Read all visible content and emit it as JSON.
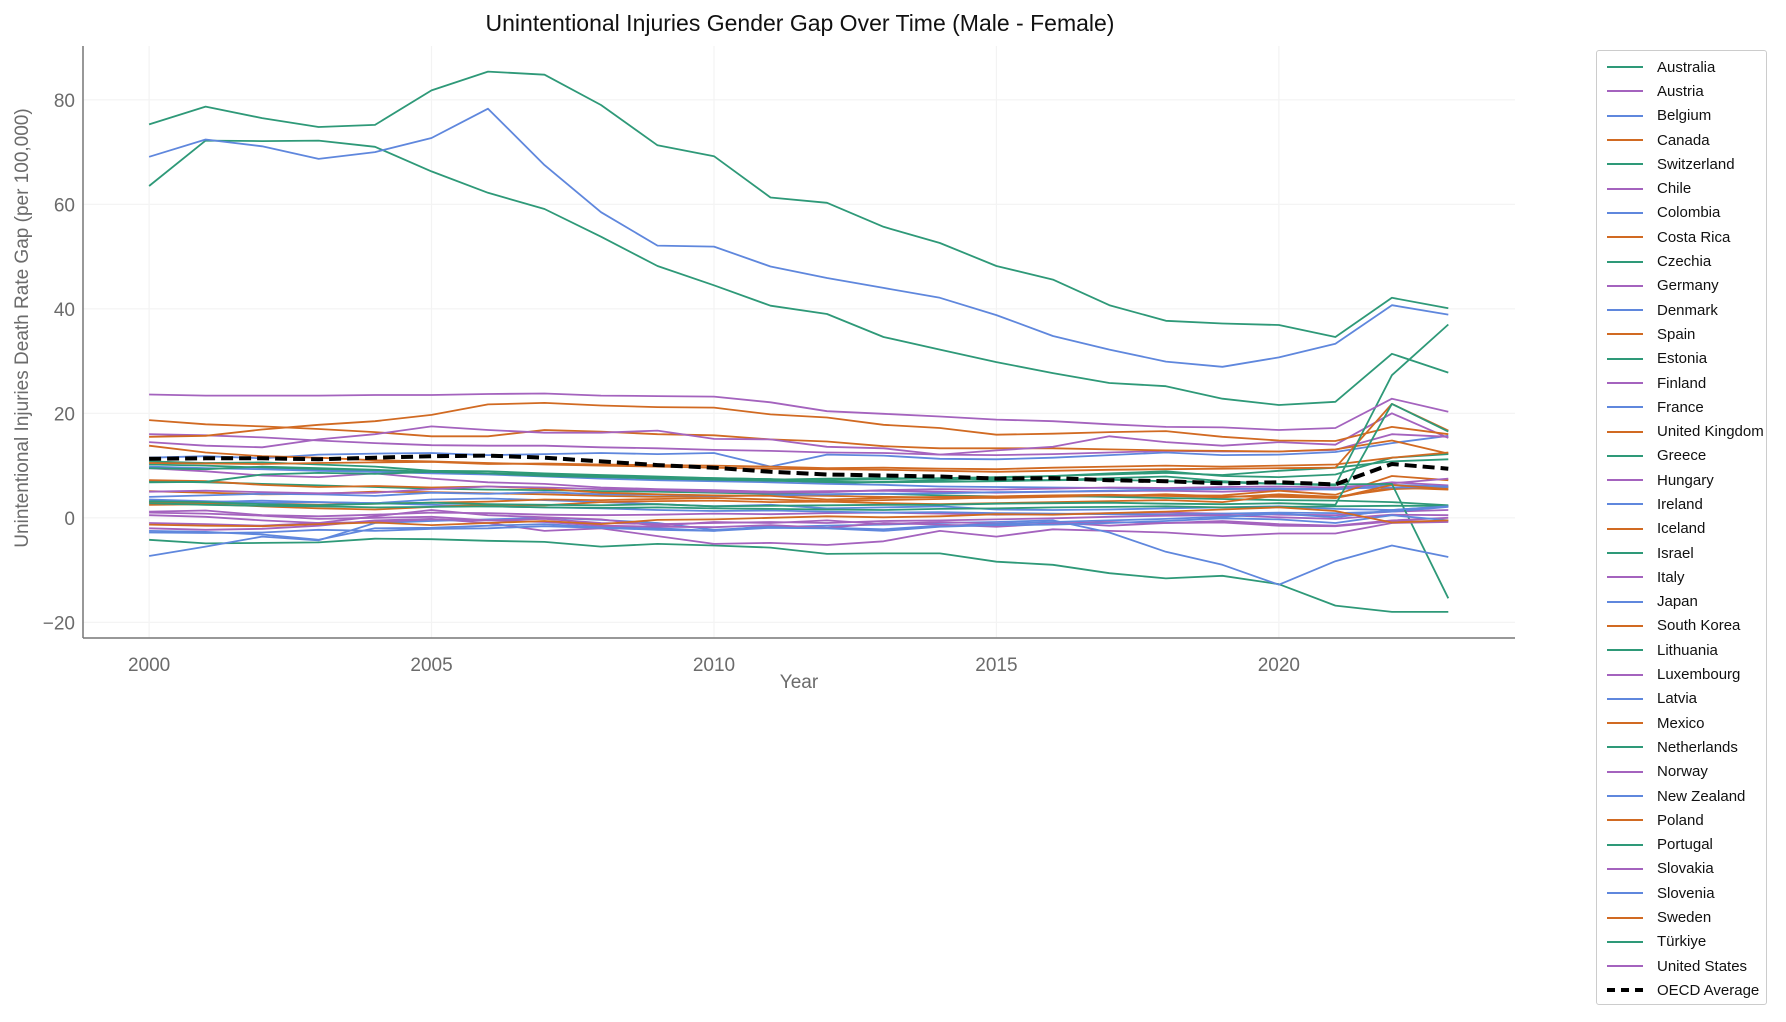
{
  "chart_data": {
    "type": "line",
    "title": "Unintentional Injuries Gender Gap Over Time (Male - Female)",
    "xlabel": "Year",
    "ylabel": "Unintentional Injuries Death Rate Gap (per 100,000)",
    "xlim": [
      1998.83,
      2024.18
    ],
    "ylim": [
      -23,
      90.3
    ],
    "xticks": [
      2000,
      2005,
      2010,
      2015,
      2020
    ],
    "yticks": [
      -20,
      0,
      20,
      40,
      60,
      80
    ],
    "ytick_labels": [
      "−20",
      "0",
      "20",
      "40",
      "60",
      "80"
    ],
    "grid": true,
    "legend_position": "outside-right",
    "colors": {
      "green": "#2e9978",
      "purple": "#a463be",
      "blue": "#5f87dd",
      "orange": "#d16a22",
      "average": "#000000"
    },
    "x": [
      2000,
      2001,
      2002,
      2003,
      2004,
      2005,
      2006,
      2007,
      2008,
      2009,
      2010,
      2011,
      2012,
      2013,
      2014,
      2015,
      2016,
      2017,
      2018,
      2019,
      2020,
      2021,
      2022,
      2023
    ],
    "series": [
      {
        "name": "Australia",
        "color": "green",
        "values": [
          10.2,
          10.0,
          9.6,
          9.2,
          8.9,
          8.6,
          8.5,
          8.3,
          8.0,
          7.8,
          7.6,
          7.4,
          7.2,
          7.4,
          7.6,
          7.8,
          8.0,
          8.3,
          8.6,
          8.2,
          9.0,
          9.6,
          10.8,
          11.2
        ]
      },
      {
        "name": "Austria",
        "color": "purple",
        "values": [
          9.5,
          8.9,
          8.1,
          7.8,
          8.5,
          7.5,
          6.8,
          6.5,
          5.8,
          5.5,
          5.3,
          5.0,
          5.1,
          5.2,
          5.0,
          4.8,
          5.0,
          5.1,
          5.2,
          5.0,
          5.3,
          5.5,
          6.8,
          6.2
        ]
      },
      {
        "name": "Belgium",
        "color": "blue",
        "values": [
          11.5,
          11.8,
          11.4,
          12.1,
          12.3,
          12.4,
          12.0,
          12.2,
          12.4,
          12.2,
          12.4,
          9.8,
          12.1,
          11.9,
          11.3,
          11.2,
          11.5,
          12.0,
          12.5,
          12.0,
          12.1,
          12.6,
          14.3,
          15.7
        ]
      },
      {
        "name": "Canada",
        "color": "orange",
        "values": [
          5.1,
          4.8,
          4.5,
          4.6,
          5.0,
          4.9,
          4.7,
          4.5,
          4.2,
          4.0,
          4.1,
          4.3,
          4.2,
          4.0,
          3.9,
          3.8,
          4.0,
          4.2,
          4.5,
          4.1,
          4.0,
          3.8,
          5.8,
          5.4
        ]
      },
      {
        "name": "Switzerland",
        "color": "green",
        "values": [
          7.0,
          6.8,
          6.5,
          6.2,
          5.9,
          5.6,
          5.4,
          5.3,
          5.1,
          5.0,
          4.8,
          4.6,
          4.5,
          4.6,
          4.3,
          4.1,
          4.2,
          4.0,
          3.8,
          3.6,
          3.4,
          3.3,
          3.0,
          2.4
        ]
      },
      {
        "name": "Chile",
        "color": "purple",
        "values": [
          16.0,
          15.8,
          15.4,
          14.8,
          14.3,
          13.9,
          13.8,
          13.8,
          13.5,
          13.3,
          13.0,
          12.8,
          12.5,
          12.4,
          12.1,
          12.0,
          12.2,
          12.5,
          12.8,
          12.7,
          12.7,
          13.0,
          16.0,
          15.5
        ]
      },
      {
        "name": "Colombia",
        "color": "blue",
        "values": [
          4.0,
          4.3,
          4.6,
          4.5,
          4.2,
          4.8,
          4.6,
          4.9,
          4.5,
          4.4,
          4.2,
          4.3,
          4.5,
          4.6,
          4.7,
          4.9,
          5.0,
          5.2,
          5.4,
          5.5,
          5.6,
          5.4,
          6.3,
          6.0
        ]
      },
      {
        "name": "Costa Rica",
        "color": "orange",
        "values": [
          18.7,
          17.9,
          17.5,
          17.0,
          16.4,
          15.6,
          15.6,
          16.8,
          16.5,
          16.0,
          15.8,
          15.0,
          14.6,
          13.7,
          13.3,
          13.3,
          13.3,
          13.1,
          12.9,
          12.8,
          12.7,
          13.1,
          14.8,
          12.3
        ]
      },
      {
        "name": "Czechia",
        "color": "green",
        "values": [
          10.8,
          10.5,
          10.6,
          10.2,
          9.8,
          9.0,
          8.9,
          8.5,
          8.2,
          7.9,
          7.6,
          7.4,
          6.6,
          6.9,
          7.2,
          7.6,
          8.0,
          8.5,
          8.9,
          8.0,
          7.8,
          8.3,
          11.5,
          12.2
        ]
      },
      {
        "name": "Germany",
        "color": "purple",
        "values": [
          1.2,
          1.4,
          0.5,
          0.3,
          0.6,
          1.0,
          0.9,
          0.6,
          0.5,
          0.6,
          0.8,
          0.7,
          0.9,
          1.0,
          0.8,
          0.6,
          0.7,
          0.9,
          1.0,
          0.8,
          0.6,
          0.5,
          1.2,
          1.5
        ]
      },
      {
        "name": "Denmark",
        "color": "blue",
        "values": [
          3.1,
          3.0,
          3.3,
          3.0,
          2.8,
          3.5,
          3.7,
          3.4,
          3.0,
          2.6,
          2.2,
          2.5,
          1.8,
          2.0,
          2.2,
          1.6,
          1.5,
          1.6,
          1.8,
          2.0,
          2.2,
          1.7,
          1.5,
          2.2
        ]
      },
      {
        "name": "Spain",
        "color": "orange",
        "values": [
          7.2,
          7.0,
          6.3,
          5.9,
          6.1,
          5.8,
          6.0,
          5.6,
          4.8,
          4.5,
          4.3,
          4.2,
          3.5,
          3.8,
          4.0,
          4.1,
          4.3,
          4.4,
          4.2,
          3.9,
          4.5,
          4.0,
          5.5,
          5.8
        ]
      },
      {
        "name": "Estonia",
        "color": "green",
        "values": [
          63.5,
          72.2,
          72.1,
          72.2,
          71.0,
          66.3,
          62.2,
          59.1,
          53.8,
          48.2,
          44.5,
          40.6,
          39.0,
          34.6,
          32.2,
          29.8,
          27.7,
          25.8,
          25.2,
          22.8,
          21.6,
          22.2,
          31.4,
          27.8
        ]
      },
      {
        "name": "Finland",
        "color": "purple",
        "values": [
          14.5,
          13.8,
          13.5,
          15.0,
          16.0,
          17.5,
          16.8,
          16.3,
          16.3,
          16.7,
          15.1,
          15.0,
          13.6,
          13.3,
          12.1,
          12.9,
          13.6,
          15.6,
          14.5,
          13.8,
          14.5,
          14.0,
          20.0,
          15.3
        ]
      },
      {
        "name": "France",
        "color": "blue",
        "values": [
          9.8,
          9.5,
          9.3,
          9.0,
          8.8,
          8.5,
          8.3,
          7.9,
          7.5,
          7.2,
          7.0,
          6.8,
          6.5,
          6.3,
          6.0,
          5.9,
          5.8,
          5.7,
          5.6,
          5.6,
          5.5,
          5.6,
          5.8,
          5.9
        ]
      },
      {
        "name": "United Kingdom",
        "color": "orange",
        "values": [
          3.0,
          2.8,
          2.7,
          2.5,
          2.7,
          2.9,
          3.1,
          3.5,
          3.4,
          3.6,
          3.8,
          3.5,
          3.2,
          3.4,
          3.6,
          3.9,
          4.1,
          4.3,
          4.2,
          4.3,
          5.2,
          4.4,
          8.0,
          7.2
        ]
      },
      {
        "name": "Greece",
        "color": "green",
        "values": [
          -4.2,
          -4.9,
          -4.8,
          -4.7,
          -4.0,
          -4.1,
          -4.4,
          -4.6,
          -5.5,
          -5.0,
          -5.3,
          -5.7,
          -6.9,
          -6.8,
          -6.8,
          -8.4,
          -9.0,
          -10.6,
          -11.6,
          -11.1,
          -12.7,
          -16.8,
          -18.0,
          -18.0
        ]
      },
      {
        "name": "Hungary",
        "color": "purple",
        "values": [
          5.0,
          5.2,
          4.9,
          4.7,
          4.8,
          5.5,
          6.0,
          5.8,
          5.5,
          5.3,
          5.0,
          4.8,
          4.9,
          5.3,
          5.5,
          5.4,
          5.6,
          5.8,
          5.7,
          5.9,
          6.0,
          5.8,
          6.6,
          7.5
        ]
      },
      {
        "name": "Ireland",
        "color": "blue",
        "values": [
          3.5,
          3.2,
          2.9,
          3.0,
          2.8,
          2.5,
          2.2,
          2.0,
          1.8,
          1.5,
          1.3,
          1.4,
          1.2,
          1.0,
          1.1,
          0.9,
          0.8,
          0.7,
          0.6,
          0.8,
          1.0,
          0.9,
          1.2,
          2.1
        ]
      },
      {
        "name": "Iceland",
        "color": "orange",
        "values": [
          2.5,
          2.6,
          2.2,
          1.8,
          1.6,
          2.1,
          2.5,
          2.4,
          3.0,
          3.2,
          3.3,
          3.0,
          3.1,
          2.8,
          2.6,
          2.8,
          3.0,
          3.2,
          3.4,
          3.0,
          4.3,
          3.8,
          6.3,
          5.5
        ]
      },
      {
        "name": "Israel",
        "color": "green",
        "values": [
          6.8,
          6.9,
          8.3,
          8.6,
          8.4,
          8.8,
          8.5,
          8.2,
          7.9,
          7.6,
          7.4,
          7.3,
          7.5,
          7.6,
          7.5,
          7.3,
          7.2,
          7.3,
          7.0,
          6.8,
          6.5,
          6.4,
          6.5,
          -15.4
        ]
      },
      {
        "name": "Italy",
        "color": "purple",
        "values": [
          -2.0,
          -2.3,
          -2.1,
          -1.5,
          -0.5,
          -0.2,
          -1.0,
          -2.5,
          -2.0,
          -3.5,
          -5.0,
          -4.8,
          -5.2,
          -4.5,
          -2.5,
          -3.6,
          -2.2,
          -2.5,
          -2.8,
          -3.5,
          -3.0,
          -3.0,
          -1.0,
          -0.8
        ]
      },
      {
        "name": "Japan",
        "color": "blue",
        "values": [
          -7.3,
          -5.5,
          -3.6,
          -4.3,
          -1.0,
          -0.6,
          -0.3,
          0.0,
          -0.4,
          -1.0,
          -2.3,
          -1.8,
          -1.5,
          -1.3,
          -1.0,
          -0.8,
          -0.5,
          -2.8,
          -6.5,
          -9.0,
          -12.8,
          -8.3,
          -5.3,
          -7.5
        ]
      },
      {
        "name": "South Korea",
        "color": "orange",
        "values": [
          15.5,
          15.7,
          16.9,
          17.8,
          18.5,
          19.7,
          21.7,
          22.0,
          21.5,
          21.2,
          21.1,
          19.8,
          19.2,
          17.8,
          17.2,
          15.9,
          16.1,
          16.4,
          16.6,
          15.5,
          14.8,
          14.7,
          17.4,
          16.0
        ]
      },
      {
        "name": "Lithuania",
        "color": "green",
        "values": [
          75.3,
          78.7,
          76.5,
          74.8,
          75.2,
          81.8,
          85.4,
          84.8,
          79.0,
          71.3,
          69.2,
          61.3,
          60.3,
          55.7,
          52.6,
          48.2,
          45.6,
          40.7,
          37.7,
          37.2,
          36.9,
          34.6,
          42.1,
          40.1
        ]
      },
      {
        "name": "Luxembourg",
        "color": "purple",
        "values": [
          0.5,
          0.2,
          -0.5,
          -1.0,
          0.3,
          1.5,
          0.5,
          0.1,
          -0.3,
          -1.5,
          -0.8,
          -1.0,
          -0.5,
          -1.2,
          -0.8,
          -1.1,
          -0.9,
          -1.5,
          -1.0,
          -0.6,
          -1.2,
          -1.5,
          -0.5,
          0.0
        ]
      },
      {
        "name": "Latvia",
        "color": "blue",
        "values": [
          69.1,
          72.4,
          71.1,
          68.7,
          70.0,
          72.7,
          78.3,
          67.5,
          58.5,
          52.1,
          51.9,
          48.1,
          45.9,
          44.0,
          42.1,
          38.8,
          34.8,
          32.2,
          29.9,
          28.9,
          30.7,
          33.3,
          40.7,
          38.9
        ]
      },
      {
        "name": "Mexico",
        "color": "orange",
        "values": [
          13.8,
          12.5,
          11.8,
          11.5,
          11.0,
          10.8,
          10.5,
          10.2,
          10.0,
          9.8,
          9.6,
          9.4,
          9.3,
          9.2,
          9.0,
          8.8,
          9.0,
          9.2,
          9.3,
          9.4,
          9.5,
          9.6,
          21.8,
          16.7
        ]
      },
      {
        "name": "Netherlands",
        "color": "green",
        "values": [
          2.8,
          2.5,
          2.3,
          2.2,
          2.0,
          2.1,
          2.2,
          2.0,
          1.9,
          2.0,
          1.8,
          1.7,
          1.6,
          1.5,
          1.7,
          1.8,
          2.0,
          2.1,
          2.2,
          2.0,
          2.1,
          2.2,
          2.3,
          2.3
        ]
      },
      {
        "name": "Norway",
        "color": "purple",
        "values": [
          1.0,
          0.8,
          0.4,
          -0.2,
          0.0,
          0.2,
          -0.5,
          -0.2,
          -1.0,
          -1.2,
          -1.0,
          -0.8,
          -1.0,
          -0.6,
          -0.5,
          -0.3,
          -0.1,
          0.2,
          0.4,
          0.5,
          0.1,
          -0.2,
          0.6,
          0.5
        ]
      },
      {
        "name": "New Zealand",
        "color": "blue",
        "values": [
          -2.5,
          -2.7,
          -3.2,
          -4.2,
          -2.0,
          -1.9,
          -1.5,
          -1.2,
          -1.8,
          -2.0,
          -2.5,
          -1.5,
          -1.9,
          -2.2,
          -1.5,
          -1.2,
          -0.8,
          -0.5,
          -0.2,
          0.2,
          0.8,
          0.1,
          1.5,
          2.2
        ]
      },
      {
        "name": "Poland",
        "color": "orange",
        "values": [
          10.5,
          10.4,
          10.3,
          10.5,
          10.6,
          10.7,
          10.3,
          10.4,
          10.2,
          10.1,
          10.0,
          9.8,
          9.5,
          9.6,
          9.4,
          9.3,
          9.6,
          9.8,
          10.0,
          9.8,
          10.0,
          10.2,
          11.5,
          12.5
        ]
      },
      {
        "name": "Portugal",
        "color": "green",
        "values": [
          3.2,
          3.0,
          2.6,
          2.4,
          2.7,
          2.9,
          2.6,
          2.5,
          2.4,
          2.6,
          2.2,
          2.3,
          2.4,
          2.5,
          2.5,
          2.7,
          2.8,
          2.9,
          2.7,
          2.6,
          2.8,
          2.5,
          21.8,
          16.5
        ]
      },
      {
        "name": "Slovakia",
        "color": "purple",
        "values": [
          -1.0,
          -1.2,
          -1.5,
          -1.0,
          -0.8,
          -0.3,
          -0.5,
          -0.8,
          -1.5,
          -1.7,
          -1.8,
          -1.4,
          -1.9,
          -1.0,
          -1.3,
          -1.7,
          -1.1,
          -0.8,
          -1.0,
          -0.9,
          -1.5,
          -1.6,
          -0.7,
          -0.6
        ]
      },
      {
        "name": "Slovenia",
        "color": "blue",
        "values": [
          -2.8,
          -2.9,
          -2.8,
          -2.3,
          -2.5,
          -2.1,
          -2.0,
          -1.6,
          -1.9,
          -2.3,
          -2.5,
          -1.9,
          -2.0,
          -2.5,
          -1.7,
          -1.4,
          -1.3,
          -1.0,
          -0.6,
          -0.1,
          -0.3,
          -1.0,
          0.5,
          -0.5
        ]
      },
      {
        "name": "Sweden",
        "color": "orange",
        "values": [
          -1.3,
          -1.5,
          -1.6,
          -1.2,
          -0.9,
          -1.4,
          -1.0,
          -0.6,
          -1.2,
          -0.4,
          -0.3,
          0.0,
          0.3,
          0.1,
          0.3,
          0.7,
          0.6,
          0.9,
          1.2,
          1.6,
          2.0,
          1.3,
          -0.9,
          -0.5
        ]
      },
      {
        "name": "Türkiye",
        "color": "green",
        "values": [
          9.5,
          9.3,
          9.8,
          9.5,
          9.2,
          8.8,
          8.5,
          8.0,
          7.8,
          7.5,
          7.3,
          7.1,
          6.9,
          6.8,
          6.9,
          7.0,
          7.2,
          7.6,
          7.9,
          7.0,
          6.5,
          6.2,
          27.3,
          37.0
        ]
      },
      {
        "name": "United States",
        "color": "purple",
        "values": [
          23.6,
          23.4,
          23.4,
          23.4,
          23.5,
          23.5,
          23.7,
          23.8,
          23.4,
          23.3,
          23.2,
          22.1,
          20.4,
          19.9,
          19.4,
          18.8,
          18.5,
          17.9,
          17.4,
          17.3,
          16.8,
          17.2,
          22.8,
          20.3
        ]
      },
      {
        "name": "OECD Average",
        "color": "average",
        "dashed": true,
        "values": [
          11.3,
          11.4,
          11.4,
          11.2,
          11.5,
          11.8,
          11.9,
          11.5,
          10.8,
          10.1,
          9.6,
          8.8,
          8.3,
          8.1,
          7.9,
          7.5,
          7.6,
          7.2,
          7.0,
          6.6,
          6.8,
          6.4,
          10.3,
          9.4
        ]
      }
    ]
  }
}
